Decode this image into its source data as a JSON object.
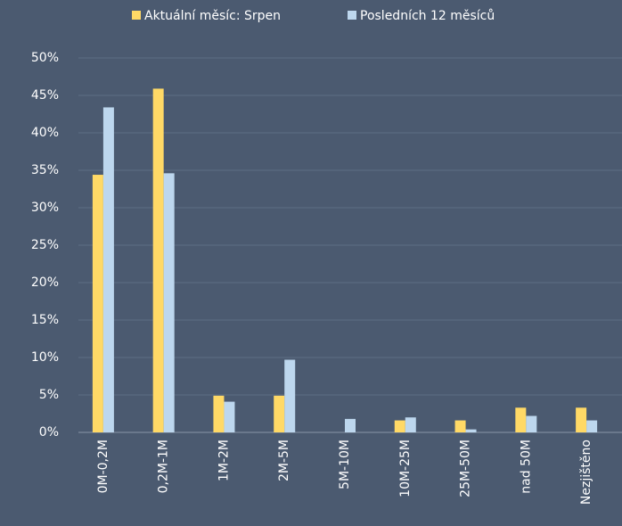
{
  "chart_data": {
    "type": "bar",
    "categories": [
      "0M-0,2M",
      "0,2M-1M",
      "1M-2M",
      "2M-5M",
      "5M-10M",
      "10M-25M",
      "25M-50M",
      "nad 50M",
      "Nezjištěno"
    ],
    "series": [
      {
        "name": "Aktuální měsíc: Srpen",
        "color": "#ffd966",
        "values": [
          34.4,
          45.9,
          4.9,
          4.9,
          0,
          1.6,
          1.6,
          3.3,
          3.3
        ]
      },
      {
        "name": "Posledních 12 měsíců",
        "color": "#bdd7ee",
        "values": [
          43.4,
          34.6,
          4.1,
          9.7,
          1.8,
          2.0,
          0.4,
          2.2,
          1.6
        ]
      }
    ],
    "ylim": [
      0,
      50
    ],
    "yticks": [
      {
        "value": 0,
        "label": "0%"
      },
      {
        "value": 5,
        "label": "5%"
      },
      {
        "value": 10,
        "label": "10%"
      },
      {
        "value": 15,
        "label": "15%"
      },
      {
        "value": 20,
        "label": "20%"
      },
      {
        "value": 25,
        "label": "25%"
      },
      {
        "value": 30,
        "label": "30%"
      },
      {
        "value": 35,
        "label": "35%"
      },
      {
        "value": 40,
        "label": "40%"
      },
      {
        "value": 45,
        "label": "45%"
      },
      {
        "value": 50,
        "label": "50%"
      }
    ],
    "grid": true,
    "legend": "top"
  }
}
